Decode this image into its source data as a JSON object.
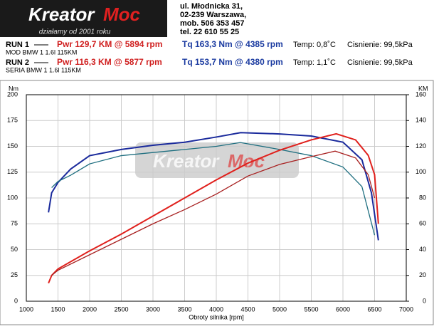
{
  "header": {
    "logo_a": "Kreator",
    "logo_b": "Moc",
    "slogan": "działamy od 2001 roku",
    "address": [
      "ul. Młodnicka 31,",
      "02-239  Warszawa,",
      "mob.  506 353 457",
      "tel.  22 610 55 25"
    ]
  },
  "runs": [
    {
      "label": "RUN 1",
      "pwr": "Pwr  129,7 KM @ 5894 rpm",
      "tq": "Tq 163,3 Nm @ 4385 rpm",
      "temp": "Temp: 0,8˚C",
      "press": "Cisnienie: 99,5kPa",
      "car": "MOD BMW 1 1.6l 115KM"
    },
    {
      "label": "RUN 2",
      "pwr": "Pwr  116,3 KM @ 5877 rpm",
      "tq": "Tq 153,7 Nm @ 4380 rpm",
      "temp": "Temp: 1,1˚C",
      "press": "Cisnienie: 99,5kPa",
      "car": "SERIA BMW 1 1.6l 115KM"
    }
  ],
  "chart_data": {
    "type": "line",
    "x_label": "Obroty silnika [rpm]",
    "y_label": "Nm",
    "y2_label": "KM",
    "xlim": [
      1000,
      7000
    ],
    "xticks": [
      1000,
      1500,
      2000,
      2500,
      3000,
      3500,
      4000,
      4500,
      5000,
      5500,
      6000,
      6500,
      7000
    ],
    "ylim": [
      0,
      200
    ],
    "yticks": [
      0,
      25,
      50,
      75,
      100,
      125,
      150,
      175,
      200
    ],
    "y2lim": [
      0,
      160
    ],
    "y2ticks": [
      0,
      20,
      40,
      60,
      80,
      100,
      120,
      140,
      160
    ],
    "grid": true,
    "series": [
      {
        "name": "Tq RUN 1",
        "color": "#1a2a9c",
        "x": [
          1350,
          1400,
          1500,
          1700,
          2000,
          2500,
          3000,
          3500,
          4000,
          4385,
          5000,
          5500,
          6000,
          6300,
          6450,
          6560
        ],
        "values": [
          86,
          105,
          115,
          128,
          141,
          147,
          151,
          154,
          159,
          163.3,
          162,
          160,
          154,
          137,
          105,
          59
        ]
      },
      {
        "name": "Tq RUN 2",
        "color": "#1f6f80",
        "x": [
          1400,
          1500,
          1700,
          2000,
          2500,
          3000,
          3500,
          4000,
          4380,
          5000,
          5500,
          6000,
          6300,
          6500
        ],
        "values": [
          110,
          116,
          122,
          133,
          141,
          144,
          147,
          150,
          153.7,
          147,
          141,
          130,
          111,
          64
        ]
      },
      {
        "name": "Pwr RUN 1",
        "color": "#e0201c",
        "axis": "y2",
        "x": [
          1350,
          1400,
          1500,
          2000,
          2500,
          3000,
          3500,
          4000,
          4500,
          5000,
          5500,
          5894,
          6200,
          6400,
          6500,
          6560
        ],
        "values": [
          14,
          20,
          25,
          39,
          52,
          66,
          80,
          94,
          107,
          117,
          125,
          129.7,
          125,
          113,
          98,
          60
        ]
      },
      {
        "name": "Pwr RUN 2",
        "color": "#a82020",
        "axis": "y2",
        "x": [
          1400,
          1500,
          2000,
          2500,
          3000,
          3500,
          4000,
          4500,
          5000,
          5500,
          5877,
          6200,
          6400,
          6500
        ],
        "values": [
          20,
          24,
          36,
          48,
          60,
          71,
          83,
          97,
          106,
          112,
          116.3,
          111,
          98,
          80
        ]
      }
    ]
  }
}
